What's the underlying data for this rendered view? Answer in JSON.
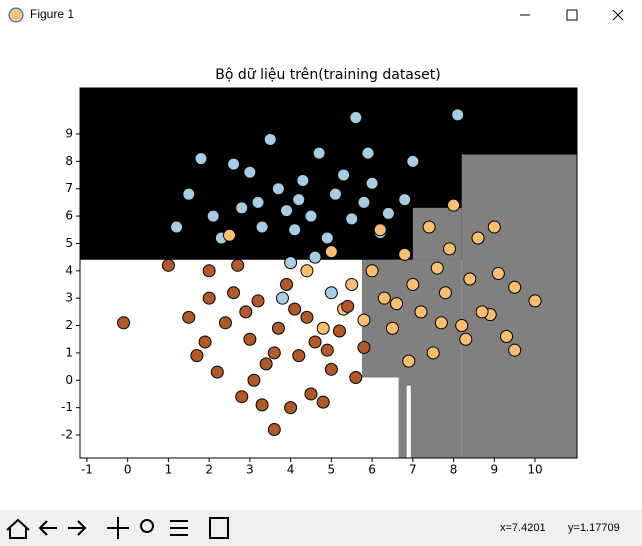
{
  "window": {
    "title": "Figure 1"
  },
  "chart_data": {
    "type": "scatter",
    "title": "Bộ dữ liệu trên(training dataset)",
    "xlim": [
      -1.17,
      11.03
    ],
    "ylim": [
      -2.84,
      10.68
    ],
    "xticks": [
      -1,
      0,
      1,
      2,
      3,
      4,
      5,
      6,
      7,
      8,
      9,
      10
    ],
    "yticks": [
      -2,
      -1,
      0,
      1,
      2,
      3,
      4,
      5,
      6,
      7,
      8,
      9
    ],
    "regions": [
      {
        "color": "#000000",
        "xlim": [
          -1.17,
          11.03
        ],
        "ylim": [
          4.4,
          10.68
        ]
      },
      {
        "color": "#808080",
        "xlim": [
          8.2,
          11.03
        ],
        "ylim": [
          -2.84,
          8.25
        ]
      },
      {
        "color": "#808080",
        "xlim": [
          7.0,
          8.2
        ],
        "ylim": [
          4.4,
          6.3
        ]
      },
      {
        "color": "#808080",
        "xlim": [
          5.75,
          8.2
        ],
        "ylim": [
          -2.84,
          4.4
        ]
      },
      {
        "color": "#ffffff",
        "xlim": [
          -1.17,
          5.75
        ],
        "ylim": [
          -2.84,
          4.4
        ]
      },
      {
        "color": "#ffffff",
        "xlim": [
          5.75,
          6.65
        ],
        "ylim": [
          -2.84,
          0.1
        ]
      },
      {
        "color": "#ffffff",
        "xlim": [
          6.85,
          6.95
        ],
        "ylim": [
          -2.84,
          -0.2
        ]
      }
    ],
    "series": [
      {
        "color": "#a6cee3",
        "x": [
          1.5,
          1.8,
          2.3,
          2.6,
          3.0,
          3.2,
          3.5,
          3.7,
          3.9,
          4.1,
          4.3,
          4.5,
          4.7,
          4.9,
          5.1,
          5.3,
          5.5,
          5.6,
          5.8,
          6.0,
          6.2,
          6.4,
          6.8,
          7.0,
          8.1,
          2.1,
          2.8,
          3.3,
          4.0,
          4.6,
          5.0,
          3.8,
          1.2,
          5.9,
          4.2
        ],
        "y": [
          6.8,
          8.1,
          5.2,
          7.9,
          7.6,
          6.5,
          8.8,
          7.0,
          6.2,
          5.5,
          7.3,
          6.0,
          8.3,
          5.2,
          6.8,
          7.5,
          5.9,
          9.6,
          6.5,
          7.2,
          5.4,
          6.1,
          6.6,
          8.0,
          9.7,
          6.0,
          6.3,
          5.6,
          4.3,
          4.5,
          3.2,
          3.0,
          5.6,
          8.3,
          6.6
        ]
      },
      {
        "color": "#fdbf6f",
        "x": [
          4.4,
          5.0,
          5.5,
          5.8,
          6.0,
          6.3,
          6.5,
          6.8,
          7.0,
          7.2,
          7.4,
          7.6,
          7.8,
          8.0,
          8.2,
          8.4,
          8.6,
          8.9,
          9.1,
          9.3,
          9.5,
          10.0,
          9.0,
          7.5,
          6.2,
          5.3,
          6.6,
          7.9,
          8.3,
          2.5,
          4.8,
          6.9,
          7.7,
          8.7,
          9.5
        ],
        "y": [
          4.0,
          4.7,
          3.5,
          2.2,
          4.0,
          3.0,
          1.9,
          4.6,
          3.5,
          2.5,
          5.6,
          4.1,
          3.2,
          6.4,
          2.0,
          3.7,
          5.2,
          2.4,
          3.9,
          1.6,
          3.4,
          2.9,
          5.6,
          1.0,
          5.5,
          2.6,
          2.8,
          4.8,
          1.5,
          5.3,
          1.9,
          0.7,
          2.1,
          2.5,
          1.1
        ]
      },
      {
        "color": "#b15928",
        "x": [
          -0.1,
          1.0,
          1.5,
          1.9,
          2.0,
          2.2,
          2.4,
          2.6,
          2.8,
          3.0,
          3.2,
          3.4,
          3.6,
          3.7,
          3.9,
          4.0,
          4.2,
          4.4,
          4.6,
          4.8,
          5.0,
          5.2,
          5.4,
          5.6,
          5.8,
          2.7,
          3.1,
          3.3,
          4.1,
          2.0,
          4.9,
          3.6,
          4.5,
          2.9,
          1.7
        ],
        "y": [
          2.1,
          4.2,
          2.3,
          1.4,
          4.0,
          0.3,
          2.1,
          3.2,
          -0.6,
          1.5,
          2.9,
          0.6,
          -1.8,
          1.9,
          3.5,
          -1.0,
          0.9,
          2.3,
          1.4,
          -0.8,
          0.4,
          1.8,
          2.7,
          0.1,
          1.2,
          4.2,
          0.0,
          -0.9,
          2.6,
          3.0,
          1.1,
          1.0,
          -0.5,
          2.5,
          0.9
        ]
      }
    ]
  },
  "status": {
    "x": "x=7.4201",
    "y": "y=1.17709"
  }
}
